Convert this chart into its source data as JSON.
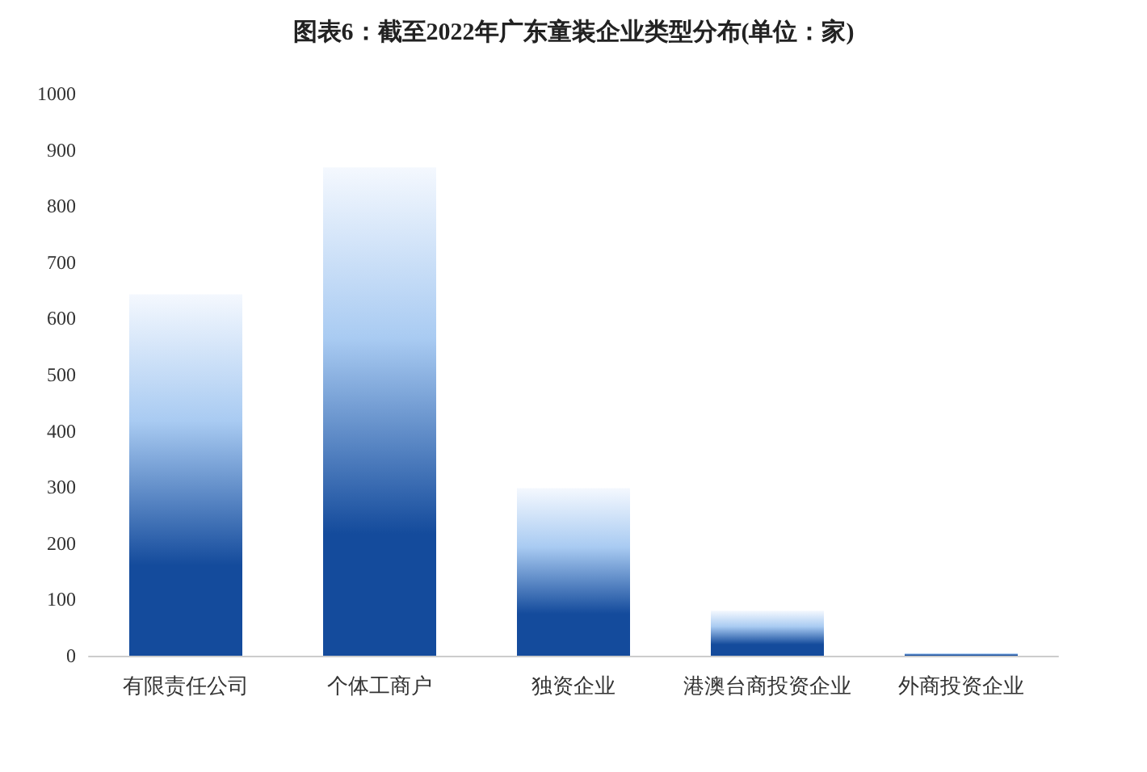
{
  "chart_data": {
    "type": "bar",
    "title": "图表6：截至2022年广东童装企业类型分布(单位：家)",
    "categories": [
      "有限责任公司",
      "个体工商户",
      "独资企业",
      "港澳台商投资企业",
      "外商投资企业"
    ],
    "values": [
      643,
      869,
      298,
      80,
      5
    ],
    "color": "#144b9c",
    "ylim": [
      0,
      1000
    ],
    "yticks": [
      0,
      100,
      200,
      300,
      400,
      500,
      600,
      700,
      800,
      900,
      1000
    ],
    "grid": false
  }
}
